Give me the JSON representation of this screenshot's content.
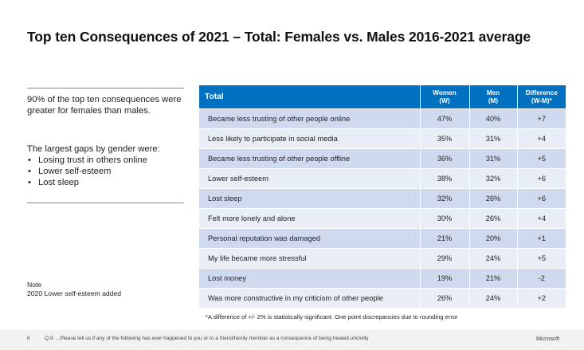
{
  "title": "Top ten Consequences of 2021 – Total: Females vs. Males 2016-2021 average",
  "left_panel": {
    "summary": "90% of the top ten consequences were greater for females than males.",
    "gaps_heading": "The largest gaps by gender were:",
    "gaps": [
      "Losing trust in others online",
      "Lower self-esteem",
      "Lost sleep"
    ],
    "bullet": "•"
  },
  "note": {
    "heading": "Note",
    "text": "2020 Lower self-esteem added"
  },
  "table": {
    "header": {
      "label": "Total",
      "women_line1": "Women",
      "women_line2": "(W)",
      "men_line1": "Men",
      "men_line2": "(M)",
      "diff_line1": "Difference",
      "diff_line2": "(W-M)*"
    },
    "rows": [
      {
        "label": "Became less trusting of other people online",
        "women": "47%",
        "men": "40%",
        "diff": "+7"
      },
      {
        "label": "Less likely to participate in social media",
        "women": "35%",
        "men": "31%",
        "diff": "+4"
      },
      {
        "label": "Became less trusting of other people offline",
        "women": "36%",
        "men": "31%",
        "diff": "+5"
      },
      {
        "label": "Lower self-esteem",
        "women": "38%",
        "men": "32%",
        "diff": "+6"
      },
      {
        "label": "Lost sleep",
        "women": "32%",
        "men": "26%",
        "diff": "+6"
      },
      {
        "label": "Felt more lonely and alone",
        "women": "30%",
        "men": "26%",
        "diff": "+4"
      },
      {
        "label": "Personal reputation was damaged",
        "women": "21%",
        "men": "20%",
        "diff": "+1"
      },
      {
        "label": "My life became more stressful",
        "women": "29%",
        "men": "24%",
        "diff": "+5"
      },
      {
        "label": "Lost money",
        "women": "19%",
        "men": "21%",
        "diff": "-2"
      },
      {
        "label": "Was more constructive in my criticism of other people",
        "women": "26%",
        "men": "24%",
        "diff": "+2"
      }
    ]
  },
  "footnote": "*A difference of +/- 2% is statistically significant. One point discrepancies due to rounding error",
  "footer": {
    "page_number": "6",
    "question": "Q.9:  ...Please tell us if any of the following has ever happened to you or to a friend/family member as a consequence of being treated uncivilly",
    "brand": "Microsoft"
  },
  "colors": {
    "header_blue": "#0070c0",
    "row_dark": "#d0daee",
    "row_light": "#e9edf6"
  }
}
